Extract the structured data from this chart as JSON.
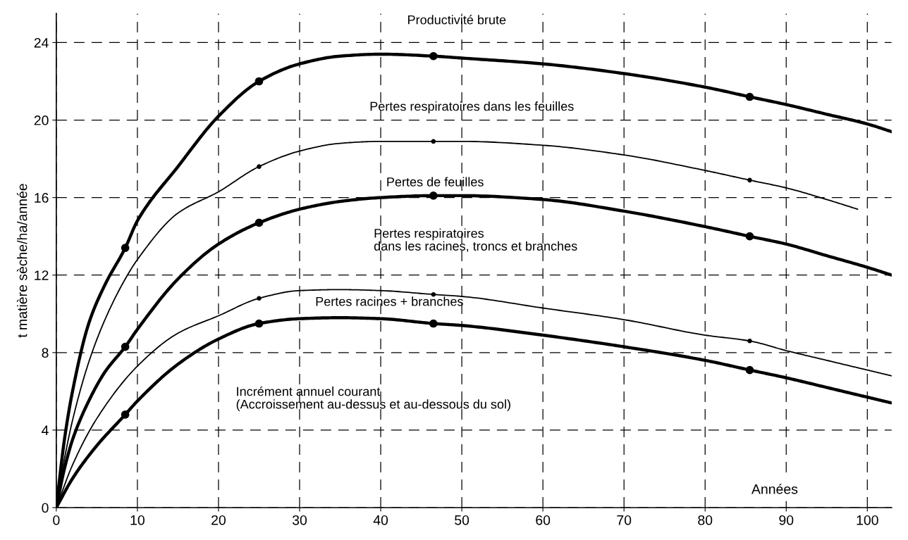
{
  "chart_data": {
    "type": "line",
    "ylabel": "t matière sèche/ha/année",
    "xlabel": "Années",
    "xlim": [
      0,
      103
    ],
    "ylim": [
      0,
      25.5
    ],
    "xticks": [
      0,
      10,
      20,
      30,
      40,
      50,
      60,
      70,
      80,
      90,
      100
    ],
    "yticks": [
      0,
      4,
      8,
      12,
      16,
      20,
      24
    ],
    "grid": true,
    "line_style": "solid",
    "marker": "none",
    "series": [
      {
        "color": "#000000",
        "x": [
          0,
          1,
          2,
          4,
          6,
          8.5,
          10,
          15,
          20,
          25,
          30,
          35,
          40,
          46.5,
          50,
          60,
          70,
          80,
          85.5,
          90,
          95,
          100,
          103
        ],
        "values": [
          0,
          3.5,
          6,
          9.5,
          11.5,
          13.4,
          14.8,
          17.6,
          20.2,
          22.0,
          22.9,
          23.3,
          23.4,
          23.3,
          23.2,
          22.9,
          22.4,
          21.7,
          21.2,
          20.8,
          20.3,
          19.8,
          19.4
        ]
      },
      {
        "color": "#000000",
        "x": [
          0,
          1,
          2,
          4,
          6,
          8.5,
          10,
          15,
          20,
          25,
          30,
          35,
          40,
          46.5,
          50,
          60,
          70,
          80,
          85.5,
          90,
          95,
          98.8
        ],
        "values": [
          0,
          2.5,
          4.5,
          7.5,
          9.7,
          11.8,
          12.8,
          15.2,
          16.3,
          17.6,
          18.4,
          18.8,
          18.9,
          18.9,
          18.9,
          18.7,
          18.2,
          17.4,
          16.9,
          16.5,
          15.9,
          15.4
        ]
      },
      {
        "color": "#000000",
        "x": [
          0,
          1,
          2,
          4,
          6,
          8.5,
          10,
          15,
          20,
          25,
          30,
          35,
          40,
          46.5,
          50,
          60,
          70,
          80,
          85.5,
          90,
          95,
          100,
          103
        ],
        "values": [
          0,
          2,
          3.5,
          5.5,
          7,
          8.3,
          9.2,
          11.8,
          13.6,
          14.7,
          15.4,
          15.8,
          16.0,
          16.1,
          16.1,
          15.9,
          15.3,
          14.5,
          14.0,
          13.6,
          13.0,
          12.4,
          12.0
        ]
      },
      {
        "color": "#000000",
        "x": [
          0,
          2,
          5,
          10,
          15,
          20,
          25,
          30,
          35,
          40,
          46.5,
          50,
          60,
          70,
          80,
          85.5,
          90,
          95,
          100,
          103
        ],
        "values": [
          0,
          2.2,
          4.6,
          7.3,
          9.0,
          9.9,
          10.8,
          11.2,
          11.25,
          11.2,
          11.0,
          10.9,
          10.3,
          9.7,
          8.9,
          8.6,
          8.1,
          7.6,
          7.1,
          6.8
        ]
      },
      {
        "color": "#000000",
        "x": [
          0,
          2,
          5,
          8.5,
          10,
          15,
          20,
          25,
          30,
          35,
          40,
          46.5,
          50,
          60,
          70,
          80,
          85.5,
          90,
          95,
          100,
          103
        ],
        "values": [
          0,
          1.5,
          3.2,
          4.8,
          5.5,
          7.4,
          8.7,
          9.5,
          9.75,
          9.8,
          9.75,
          9.5,
          9.4,
          8.9,
          8.3,
          7.6,
          7.1,
          6.7,
          6.2,
          5.7,
          5.4
        ]
      },
      {
        "type": "scatter",
        "marker": "circle",
        "color": "#000000",
        "x": [
          8.5,
          25,
          46.5,
          85.5
        ],
        "values": [
          13.4,
          22.0,
          23.3,
          21.2
        ]
      },
      {
        "type": "scatter",
        "marker": "circle",
        "color": "#000000",
        "x": [
          25,
          46.5,
          85.5
        ],
        "values": [
          17.6,
          18.9,
          16.9
        ]
      },
      {
        "type": "scatter",
        "marker": "circle",
        "color": "#000000",
        "x": [
          8.5,
          25,
          46.5,
          85.5
        ],
        "values": [
          8.3,
          14.7,
          16.1,
          14.0
        ]
      },
      {
        "type": "scatter",
        "marker": "circle",
        "color": "#000000",
        "x": [
          25,
          46.5,
          85.5
        ],
        "values": [
          10.8,
          11.0,
          8.6
        ]
      },
      {
        "type": "scatter",
        "marker": "circle",
        "color": "#000000",
        "x": [
          8.5,
          25,
          46.5,
          85.5
        ],
        "values": [
          4.8,
          9.5,
          9.5,
          7.1
        ]
      }
    ],
    "annotations": [
      "Productivité brute",
      "Pertes respiratoires dans les feuilles",
      "Pertes de feuilles",
      "Pertes respiratoires\ndans les racines, troncs et branches",
      "Pertes racines + branches",
      "Incrément annuel courant\n(Accroissement au-dessus et au-dessous du sol)"
    ]
  }
}
